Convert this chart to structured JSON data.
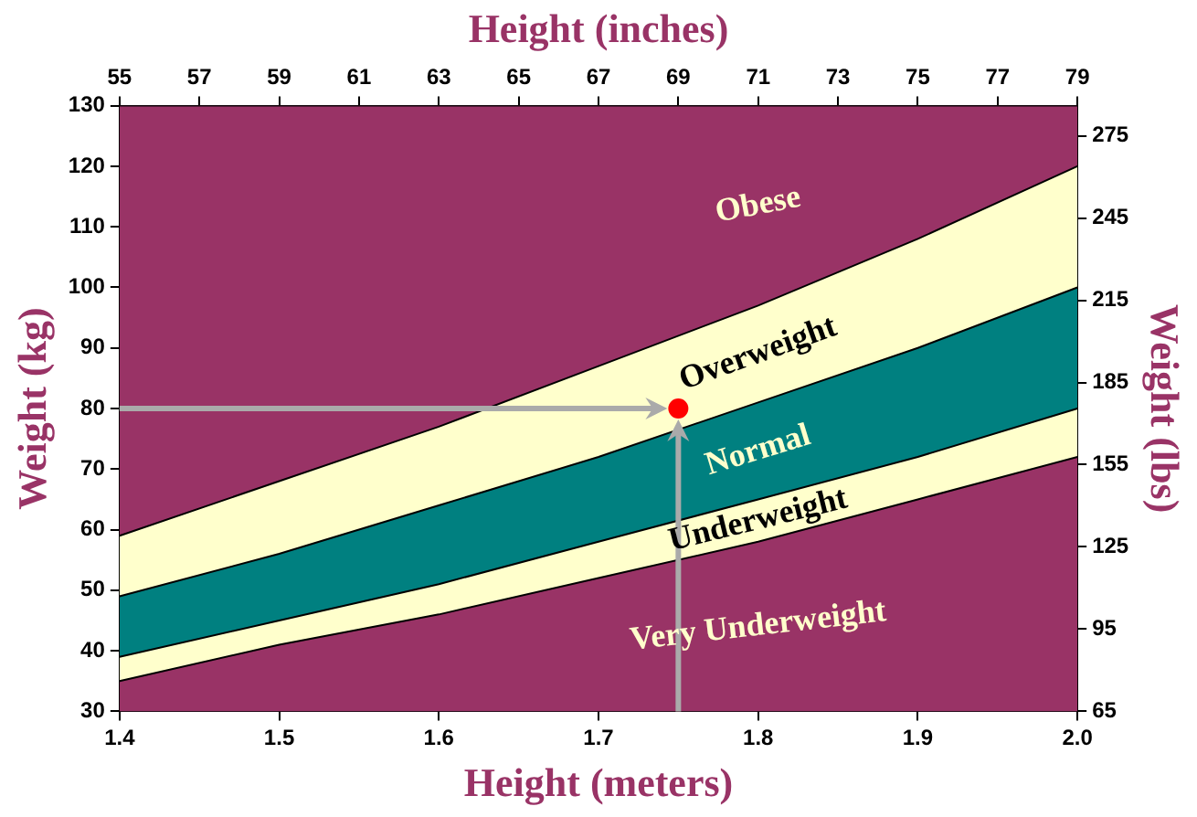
{
  "chart_data": {
    "type": "area",
    "xlabel": "Height (meters)",
    "ylabel": "Weight (kg)",
    "x2label": "Height (inches)",
    "y2label": "Weight (lbs)",
    "x": [
      1.4,
      1.5,
      1.6,
      1.7,
      1.8,
      1.9,
      2.0
    ],
    "xlim": [
      1.4,
      2.0
    ],
    "xticks": [
      1.4,
      1.5,
      1.6,
      1.7,
      1.8,
      1.9,
      {
        "value": 2,
        "label": "2.0"
      }
    ],
    "ylim": [
      30,
      130
    ],
    "yticks": [
      30,
      40,
      50,
      60,
      70,
      80,
      90,
      100,
      110,
      120,
      130
    ],
    "x2lim": [
      55,
      79
    ],
    "x2ticks": [
      55,
      57,
      59,
      61,
      63,
      65,
      67,
      69,
      71,
      73,
      75,
      77,
      79
    ],
    "y2lim": [
      65,
      286
    ],
    "y2ticks": [
      65,
      95,
      125,
      155,
      185,
      215,
      245,
      275
    ],
    "series": [
      {
        "name": "Very Underweight",
        "color": "#993366",
        "values": [
          35,
          41,
          46,
          52,
          58,
          65,
          72
        ]
      },
      {
        "name": "Underweight",
        "color": "#ffffcc",
        "values": [
          39,
          45,
          51,
          58,
          65,
          72,
          80
        ]
      },
      {
        "name": "Normal",
        "color": "#008080",
        "values": [
          49,
          56,
          64,
          72,
          81,
          90,
          100
        ]
      },
      {
        "name": "Overweight",
        "color": "#ffffcc",
        "values": [
          59,
          68,
          77,
          87,
          97,
          108,
          120
        ]
      },
      {
        "name": "Obese",
        "color": "#993366",
        "values": [
          130,
          130,
          130,
          130,
          130,
          130,
          130
        ]
      },
      {
        "type": "scatter",
        "x": [
          1.75
        ],
        "color": "#ff0000",
        "values": [
          80
        ]
      }
    ],
    "legend": false
  }
}
